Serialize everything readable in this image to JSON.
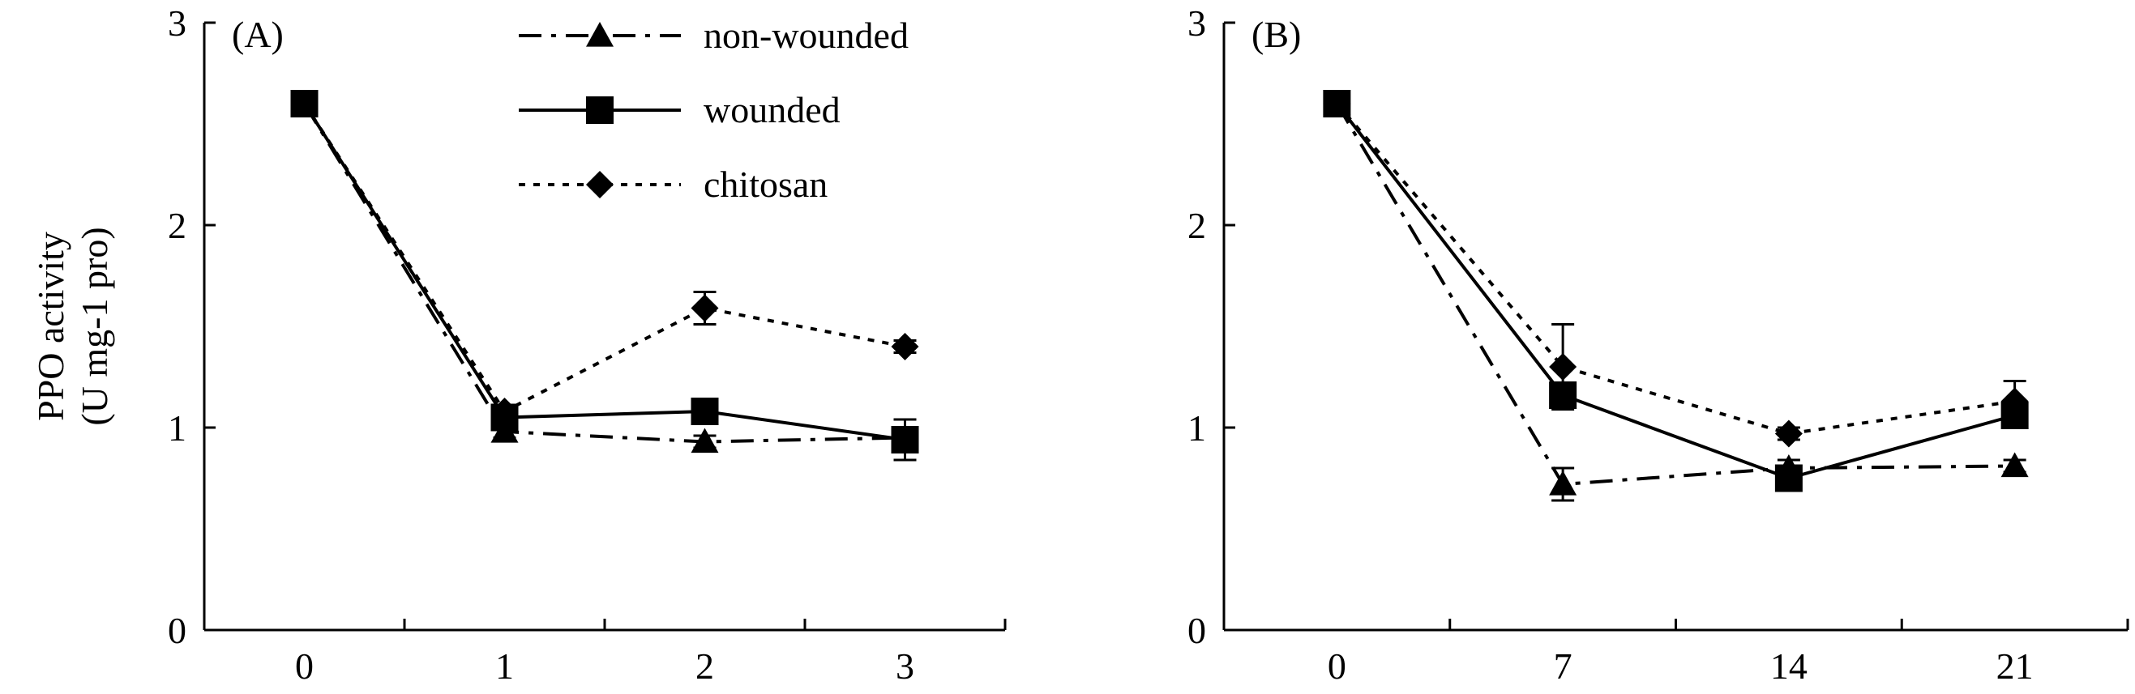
{
  "figure": {
    "ylabel_line1": "PPO activity",
    "ylabel_line2": "(U mg-1 pro)"
  },
  "chart_data": [
    {
      "type": "line",
      "panel_label": "(A)",
      "x": [
        0,
        1,
        2,
        3
      ],
      "xticklabels": [
        "0",
        "1",
        "2",
        "3"
      ],
      "ylim": [
        0,
        3
      ],
      "yticks": [
        0,
        1,
        2,
        3
      ],
      "legend_position": "top-center",
      "series": [
        {
          "name": "non-wounded",
          "marker": "triangle",
          "dash": "dashdot",
          "values": [
            2.6,
            0.98,
            0.93,
            0.95
          ],
          "errors": [
            0.04,
            0.03,
            0.03,
            0.04
          ]
        },
        {
          "name": "wounded",
          "marker": "square",
          "dash": "solid",
          "values": [
            2.6,
            1.05,
            1.08,
            0.94
          ],
          "errors": [
            0.05,
            0.05,
            0.04,
            0.1
          ]
        },
        {
          "name": "chitosan",
          "marker": "diamond",
          "dash": "dotted",
          "values": [
            2.6,
            1.08,
            1.59,
            1.4
          ],
          "errors": [
            0.04,
            0.03,
            0.08,
            0.03
          ]
        }
      ]
    },
    {
      "type": "line",
      "panel_label": "(B)",
      "x": [
        0,
        7,
        14,
        21
      ],
      "xticklabels": [
        "0",
        "7",
        "14",
        "21"
      ],
      "ylim": [
        0,
        3
      ],
      "yticks": [
        0,
        1,
        2,
        3
      ],
      "series": [
        {
          "name": "non-wounded",
          "marker": "triangle",
          "dash": "dashdot",
          "values": [
            2.6,
            0.72,
            0.8,
            0.81
          ],
          "errors": [
            0.04,
            0.08,
            0.04,
            0.03
          ]
        },
        {
          "name": "wounded",
          "marker": "square",
          "dash": "solid",
          "values": [
            2.6,
            1.16,
            0.75,
            1.06
          ],
          "errors": [
            0.05,
            0.05,
            0.04,
            0.06
          ]
        },
        {
          "name": "chitosan",
          "marker": "diamond",
          "dash": "dotted",
          "values": [
            2.6,
            1.3,
            0.97,
            1.13
          ],
          "errors": [
            0.04,
            0.21,
            0.03,
            0.1
          ]
        }
      ]
    }
  ]
}
